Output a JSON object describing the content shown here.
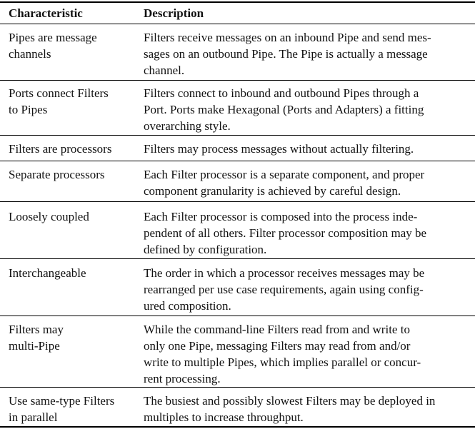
{
  "table": {
    "headers": {
      "characteristic": "Characteristic",
      "description": "Description"
    },
    "rows": [
      {
        "characteristic": [
          "Pipes are message",
          "channels"
        ],
        "description": [
          "Filters receive messages on an inbound Pipe and send mes-",
          "sages on an outbound Pipe. The Pipe is actually a message",
          "channel."
        ]
      },
      {
        "characteristic": [
          "Ports connect Filters",
          "to Pipes"
        ],
        "description": [
          "Filters connect to inbound and outbound Pipes through a",
          "Port. Ports make Hexagonal (Ports and Adapters) a fitting",
          "overarching style."
        ]
      },
      {
        "characteristic": [
          "Filters are processors"
        ],
        "description": [
          "Filters may process messages without actually filtering."
        ]
      },
      {
        "characteristic": [
          "Separate processors"
        ],
        "description": [
          "Each Filter processor is a separate component, and proper",
          "component granularity is achieved by careful design."
        ]
      },
      {
        "characteristic": [
          "Loosely coupled"
        ],
        "description": [
          "Each Filter processor is composed into the process inde-",
          "pendent of all others. Filter processor composition may be",
          "defined by configuration."
        ]
      },
      {
        "characteristic": [
          "Interchangeable"
        ],
        "description": [
          "The order in which a processor receives messages may be",
          "rearranged per use case requirements, again using config-",
          "ured composition."
        ]
      },
      {
        "characteristic": [
          "Filters may",
          "multi-Pipe"
        ],
        "description": [
          "While the command-line Filters read from and write to",
          "only one Pipe, messaging Filters may read from and/or",
          "write to multiple Pipes, which implies parallel or concur-",
          "rent processing."
        ]
      },
      {
        "characteristic": [
          "Use same-type Filters",
          "in parallel"
        ],
        "description": [
          "The busiest and possibly slowest Filters may be deployed in",
          "multiples to increase throughput."
        ]
      }
    ]
  }
}
